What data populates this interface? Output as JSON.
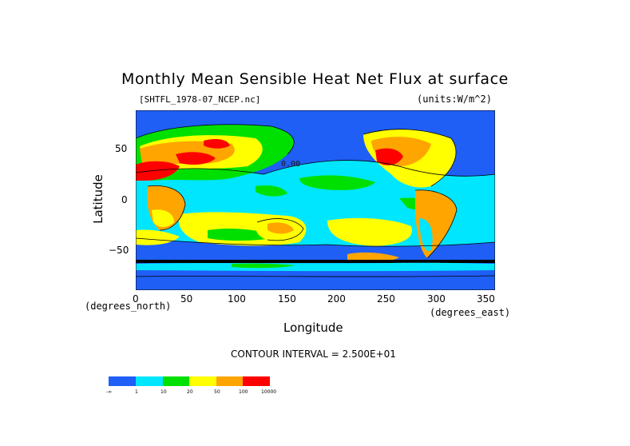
{
  "title": "Monthly Mean Sensible Heat Net Flux at surface",
  "file_label": "[SHTFL_1978-07_NCEP.nc]",
  "units_label": "(units:W/m^2)",
  "inline_contour_label": "0.00",
  "axes": {
    "x": {
      "title": "Longitude",
      "unit": "(degrees_east)",
      "ticks": [
        "0",
        "50",
        "100",
        "150",
        "200",
        "250",
        "300",
        "350"
      ],
      "range": [
        0,
        357.5
      ]
    },
    "y": {
      "title": "Latitude",
      "unit": "(degrees_north)",
      "ticks": [
        "50",
        "0",
        "−50"
      ],
      "range": [
        -88.5,
        88.5
      ]
    }
  },
  "contour_interval": "CONTOUR INTERVAL = 2.500E+01",
  "legend": {
    "labels": [
      "-∞",
      "1",
      "10",
      "20",
      "50",
      "100",
      "10000"
    ],
    "colors": [
      "#1f5ff5",
      "#00e6ff",
      "#00e000",
      "#ffff00",
      "#ffa500",
      "#ff0000"
    ]
  },
  "colors": {
    "ocean_neg": "#1f5ff5",
    "ocean_low": "#00e6ff",
    "green": "#00e000",
    "yellow": "#ffff00",
    "orange": "#ffa500",
    "red": "#ff0000",
    "antarctica": "#1f5ff5"
  }
}
